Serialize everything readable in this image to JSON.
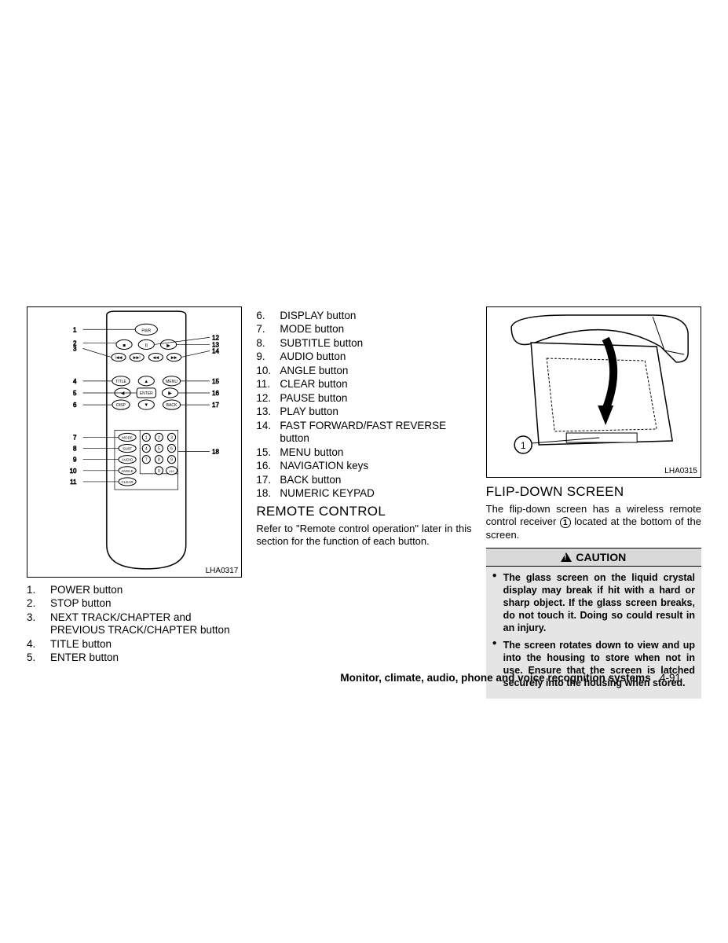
{
  "col1": {
    "figure": {
      "code": "LHA0317",
      "left_callouts": [
        1,
        2,
        3,
        4,
        5,
        6,
        7,
        8,
        9,
        10,
        11
      ],
      "right_callouts": [
        12,
        13,
        14,
        15,
        16,
        17,
        18
      ],
      "keypad_labels": [
        "MODE",
        "SUBT",
        "AUDIO",
        "ANGLE",
        "CLEAR"
      ],
      "keypad_nums": [
        "1",
        "2",
        "3",
        "4",
        "5",
        "6",
        "7",
        "8",
        "9",
        "0",
        "≥10"
      ]
    },
    "legend": [
      {
        "n": "1.",
        "t": "POWER button"
      },
      {
        "n": "2.",
        "t": "STOP button"
      },
      {
        "n": "3.",
        "t": "NEXT TRACK/CHAPTER and PREVIOUS TRACK/CHAPTER button"
      },
      {
        "n": "4.",
        "t": "TITLE button"
      },
      {
        "n": "5.",
        "t": "ENTER button"
      }
    ]
  },
  "col2": {
    "legend": [
      {
        "n": "6.",
        "t": "DISPLAY button"
      },
      {
        "n": "7.",
        "t": "MODE button"
      },
      {
        "n": "8.",
        "t": "SUBTITLE button"
      },
      {
        "n": "9.",
        "t": "AUDIO button"
      },
      {
        "n": "10.",
        "t": "ANGLE button"
      },
      {
        "n": "11.",
        "t": "CLEAR button"
      },
      {
        "n": "12.",
        "t": "PAUSE button"
      },
      {
        "n": "13.",
        "t": "PLAY button"
      },
      {
        "n": "14.",
        "t": "FAST FORWARD/FAST REVERSE button"
      },
      {
        "n": "15.",
        "t": "MENU button"
      },
      {
        "n": "16.",
        "t": "NAVIGATION keys"
      },
      {
        "n": "17.",
        "t": "BACK button"
      },
      {
        "n": "18.",
        "t": "NUMERIC KEYPAD"
      }
    ],
    "heading": "REMOTE CONTROL",
    "body": "Refer to \"Remote control operation\" later in this section for the function of each button."
  },
  "col3": {
    "figure": {
      "code": "LHA0315",
      "callout": "1"
    },
    "heading": "FLIP-DOWN SCREEN",
    "body": "The flip-down screen has a wireless remote control receiver ① located at the bottom of the screen.",
    "body_circled": "1",
    "caution_label": "CAUTION",
    "caution_items": [
      "The glass screen on the liquid crystal display may break if hit with a hard or sharp object. If the glass screen breaks, do not touch it. Doing so could result in an injury.",
      "The screen rotates down to view and up into the housing to store when not in use. Ensure that the screen is latched securely into the housing when stored."
    ]
  },
  "footer": {
    "section": "Monitor, climate, audio, phone and voice recognition systems",
    "page": "4-91"
  },
  "colors": {
    "border": "#000000",
    "caution_bg": "#e5e5e5",
    "caution_hdr_bg": "#d9d9d9"
  }
}
